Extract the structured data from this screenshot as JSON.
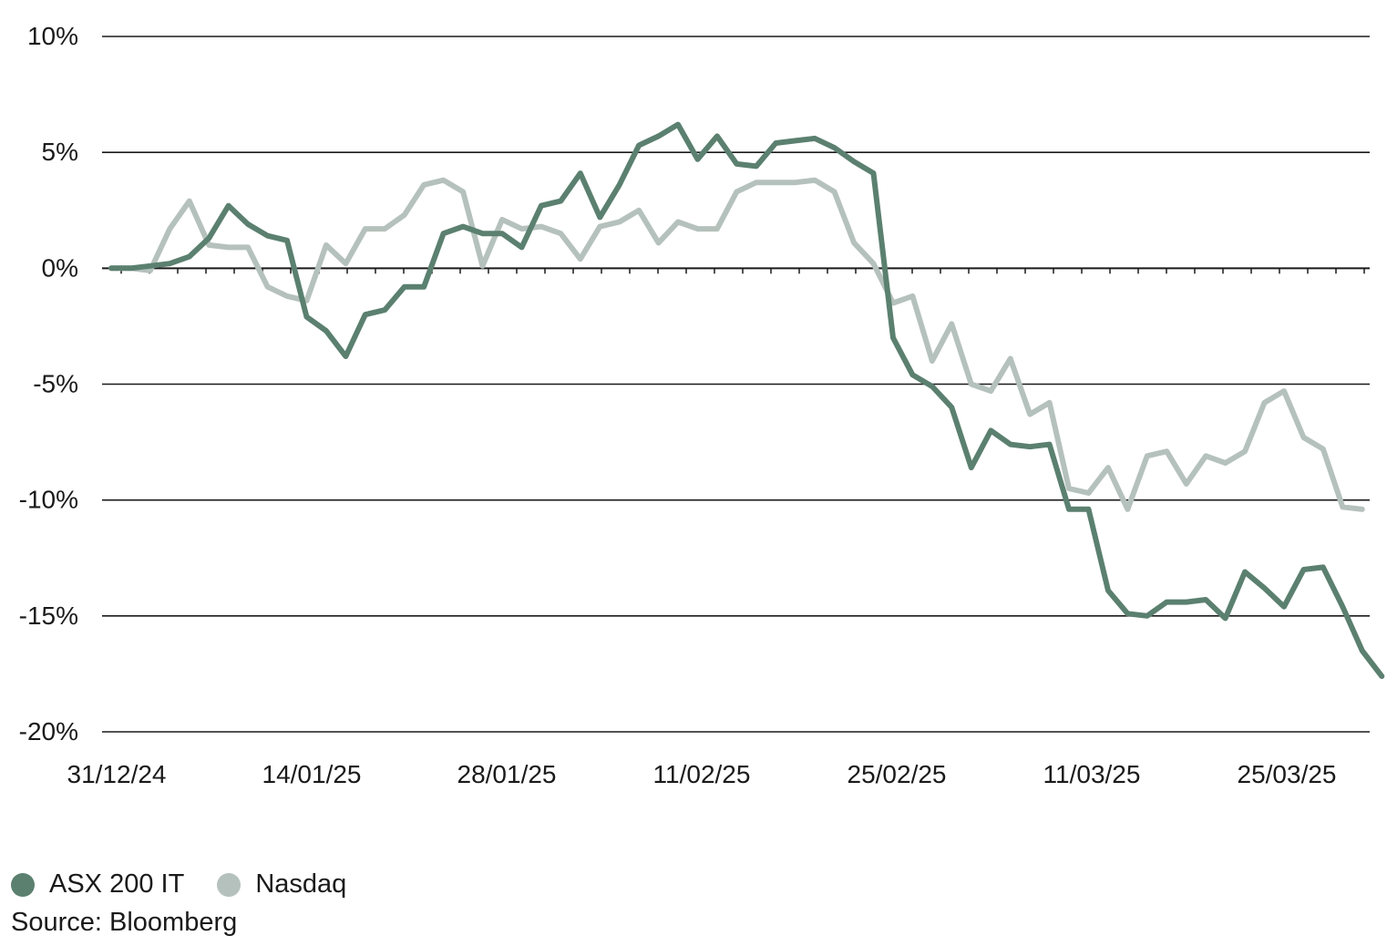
{
  "chart_data": {
    "type": "line",
    "y_unit": "%",
    "ylim": [
      -20,
      10
    ],
    "y_ticks": [
      10,
      5,
      0,
      -5,
      -10,
      -15,
      -20
    ],
    "y_tick_labels": [
      "10%",
      "5%",
      "0%",
      "-5%",
      "-10%",
      "-15%",
      "-20%"
    ],
    "x_tick_labels": [
      "31/12/24",
      "14/01/25",
      "28/01/25",
      "11/02/25",
      "25/02/25",
      "11/03/25",
      "25/03/25"
    ],
    "grid": "horizontal",
    "legend_placement": "bottom-left",
    "series": [
      {
        "name": "ASX 200 IT",
        "color": "#5b8070",
        "values": [
          0,
          0,
          0.1,
          0.2,
          0.5,
          1.3,
          2.7,
          1.9,
          1.4,
          1.2,
          -2.1,
          -2.7,
          -3.8,
          -2.0,
          -1.8,
          -0.8,
          -0.8,
          1.5,
          1.8,
          1.5,
          1.5,
          0.9,
          2.7,
          2.9,
          4.1,
          2.2,
          3.6,
          5.3,
          5.7,
          6.2,
          4.7,
          5.7,
          4.5,
          4.4,
          5.4,
          5.5,
          5.6,
          5.2,
          4.6,
          4.1,
          -3.0,
          -4.6,
          -5.1,
          -6.0,
          -8.6,
          -7.0,
          -7.6,
          -7.7,
          -7.6,
          -10.4,
          -10.4,
          -13.9,
          -14.9,
          -15.0,
          -14.4,
          -14.4,
          -14.3,
          -15.1,
          -13.1,
          -13.8,
          -14.6,
          -13.0,
          -12.9,
          -14.6,
          -16.5,
          -17.6
        ]
      },
      {
        "name": "Nasdaq",
        "color": "#b5c1bc",
        "values": [
          0,
          0,
          -0.1,
          1.7,
          2.9,
          1.0,
          0.9,
          0.9,
          -0.8,
          -1.2,
          -1.4,
          1.0,
          0.2,
          1.7,
          1.7,
          2.3,
          3.6,
          3.8,
          3.3,
          0.1,
          2.1,
          1.7,
          1.8,
          1.5,
          0.4,
          1.8,
          2.0,
          2.5,
          1.1,
          2.0,
          1.7,
          1.7,
          3.3,
          3.7,
          3.7,
          3.7,
          3.8,
          3.3,
          1.1,
          0.2,
          -1.5,
          -1.2,
          -4.0,
          -2.4,
          -5.0,
          -5.3,
          -3.9,
          -6.3,
          -5.8,
          -9.5,
          -9.7,
          -8.6,
          -10.4,
          -8.1,
          -7.9,
          -9.3,
          -8.1,
          -8.4,
          -7.9,
          -5.8,
          -5.3,
          -7.3,
          -7.8,
          -10.3,
          -10.4
        ]
      }
    ],
    "source": "Source: Bloomberg"
  }
}
